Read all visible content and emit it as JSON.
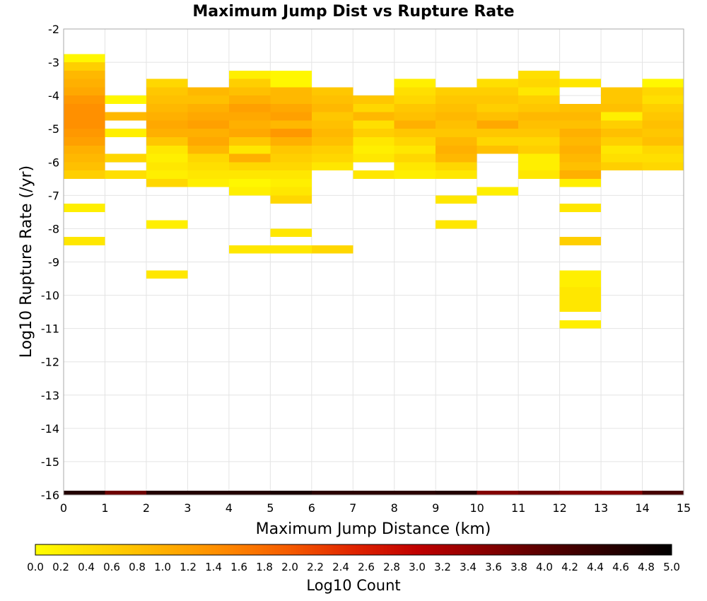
{
  "chart_data": {
    "type": "heatmap",
    "title": "Maximum Jump Dist vs Rupture Rate",
    "xlabel": "Maximum Jump Distance (km)",
    "ylabel": "Log10 Rupture Rate (/yr)",
    "xlim": [
      0,
      15
    ],
    "ylim": [
      -16,
      -2
    ],
    "x_ticks": [
      "0",
      "1",
      "2",
      "3",
      "4",
      "5",
      "6",
      "7",
      "8",
      "9",
      "10",
      "11",
      "12",
      "13",
      "14",
      "15"
    ],
    "y_ticks": [
      "-2",
      "-3",
      "-4",
      "-5",
      "-6",
      "-7",
      "-8",
      "-9",
      "-10",
      "-11",
      "-12",
      "-13",
      "-14",
      "-15",
      "-16"
    ],
    "x_bin_width": 1,
    "y_bin_width": 0.25,
    "grid": true,
    "colorbar": {
      "label": "Log10 Count",
      "range": [
        0,
        5
      ],
      "ticks": [
        "0.0",
        "0.2",
        "0.4",
        "0.6",
        "0.8",
        "1.0",
        "1.2",
        "1.4",
        "1.6",
        "1.8",
        "2.0",
        "2.2",
        "2.4",
        "2.6",
        "2.8",
        "3.0",
        "3.2",
        "3.4",
        "3.6",
        "3.8",
        "4.0",
        "4.2",
        "4.4",
        "4.6",
        "4.8",
        "5.0"
      ],
      "colors": [
        "#ffff00",
        "#ffd700",
        "#ffb000",
        "#ff8800",
        "#f55a00",
        "#e02400",
        "#c00000",
        "#8c0000",
        "#580000",
        "#2a0000",
        "#000000"
      ],
      "placement": "bottom"
    },
    "columns": [
      {
        "x": 0.5,
        "cells": [
          [
            -2.875,
            0.1
          ],
          [
            -3.125,
            0.6
          ],
          [
            -3.375,
            0.9
          ],
          [
            -3.625,
            1.0
          ],
          [
            -3.875,
            1.1
          ],
          [
            -4.125,
            1.3
          ],
          [
            -4.375,
            1.4
          ],
          [
            -4.625,
            1.4
          ],
          [
            -4.875,
            1.4
          ],
          [
            -5.125,
            1.3
          ],
          [
            -5.375,
            1.2
          ],
          [
            -5.625,
            1.0
          ],
          [
            -5.875,
            0.9
          ],
          [
            -6.125,
            0.8
          ],
          [
            -6.375,
            0.6
          ],
          [
            -7.375,
            0.2
          ],
          [
            -8.375,
            0.3
          ],
          [
            -16.0,
            4.6
          ]
        ]
      },
      {
        "x": 1.5,
        "cells": [
          [
            -4.125,
            0.1
          ],
          [
            -4.625,
            0.9
          ],
          [
            -5.125,
            0.2
          ],
          [
            -5.875,
            0.5
          ],
          [
            -6.375,
            0.4
          ],
          [
            -16.0,
            3.8
          ]
        ]
      },
      {
        "x": 2.5,
        "cells": [
          [
            -3.625,
            0.5
          ],
          [
            -3.875,
            0.7
          ],
          [
            -4.125,
            0.8
          ],
          [
            -4.375,
            0.9
          ],
          [
            -4.625,
            1.0
          ],
          [
            -4.875,
            1.1
          ],
          [
            -5.125,
            1.0
          ],
          [
            -5.375,
            0.7
          ],
          [
            -5.625,
            0.3
          ],
          [
            -5.875,
            0.2
          ],
          [
            -6.125,
            0.3
          ],
          [
            -6.375,
            0.2
          ],
          [
            -6.625,
            0.5
          ],
          [
            -7.875,
            0.2
          ],
          [
            -9.375,
            0.3
          ],
          [
            -16.0,
            4.6
          ]
        ]
      },
      {
        "x": 3.5,
        "cells": [
          [
            -3.875,
            0.9
          ],
          [
            -4.125,
            0.8
          ],
          [
            -4.375,
            1.0
          ],
          [
            -4.625,
            1.1
          ],
          [
            -4.875,
            1.2
          ],
          [
            -5.125,
            1.0
          ],
          [
            -5.375,
            1.1
          ],
          [
            -5.625,
            0.9
          ],
          [
            -5.875,
            0.5
          ],
          [
            -6.125,
            0.4
          ],
          [
            -6.375,
            0.3
          ],
          [
            -6.625,
            0.2
          ],
          [
            -16.0,
            4.6
          ]
        ]
      },
      {
        "x": 4.5,
        "cells": [
          [
            -3.375,
            0.2
          ],
          [
            -3.625,
            0.6
          ],
          [
            -3.875,
            0.8
          ],
          [
            -4.125,
            1.0
          ],
          [
            -4.375,
            1.2
          ],
          [
            -4.625,
            1.1
          ],
          [
            -4.875,
            1.0
          ],
          [
            -5.125,
            1.1
          ],
          [
            -5.375,
            0.7
          ],
          [
            -5.625,
            0.3
          ],
          [
            -5.875,
            1.0
          ],
          [
            -6.125,
            0.5
          ],
          [
            -6.375,
            0.3
          ],
          [
            -6.625,
            0.1
          ],
          [
            -6.875,
            0.2
          ],
          [
            -8.625,
            0.3
          ],
          [
            -16.0,
            4.6
          ]
        ]
      },
      {
        "x": 5.5,
        "cells": [
          [
            -3.375,
            0.1
          ],
          [
            -3.625,
            0.1
          ],
          [
            -3.875,
            0.9
          ],
          [
            -4.125,
            0.9
          ],
          [
            -4.375,
            1.1
          ],
          [
            -4.625,
            1.2
          ],
          [
            -4.875,
            0.9
          ],
          [
            -5.125,
            1.3
          ],
          [
            -5.375,
            1.0
          ],
          [
            -5.625,
            0.7
          ],
          [
            -5.875,
            0.6
          ],
          [
            -6.125,
            0.5
          ],
          [
            -6.375,
            0.3
          ],
          [
            -6.625,
            0.2
          ],
          [
            -6.875,
            0.3
          ],
          [
            -7.125,
            0.5
          ],
          [
            -8.125,
            0.3
          ],
          [
            -8.625,
            0.3
          ],
          [
            -16.0,
            4.7
          ]
        ]
      },
      {
        "x": 6.5,
        "cells": [
          [
            -3.875,
            0.7
          ],
          [
            -4.125,
            0.8
          ],
          [
            -4.375,
            0.9
          ],
          [
            -4.625,
            0.7
          ],
          [
            -4.875,
            0.8
          ],
          [
            -5.125,
            0.9
          ],
          [
            -5.375,
            0.8
          ],
          [
            -5.625,
            0.6
          ],
          [
            -5.875,
            0.5
          ],
          [
            -6.125,
            0.3
          ],
          [
            -8.625,
            0.5
          ],
          [
            -16.0,
            4.5
          ]
        ]
      },
      {
        "x": 7.5,
        "cells": [
          [
            -4.125,
            0.7
          ],
          [
            -4.375,
            0.5
          ],
          [
            -4.625,
            0.9
          ],
          [
            -4.875,
            0.4
          ],
          [
            -5.125,
            0.6
          ],
          [
            -5.375,
            0.3
          ],
          [
            -5.625,
            0.2
          ],
          [
            -5.875,
            0.3
          ],
          [
            -6.375,
            0.3
          ],
          [
            -16.0,
            4.5
          ]
        ]
      },
      {
        "x": 8.5,
        "cells": [
          [
            -3.625,
            0.2
          ],
          [
            -3.875,
            0.4
          ],
          [
            -4.125,
            0.5
          ],
          [
            -4.375,
            0.7
          ],
          [
            -4.625,
            0.8
          ],
          [
            -4.875,
            1.0
          ],
          [
            -5.125,
            0.7
          ],
          [
            -5.375,
            0.5
          ],
          [
            -5.625,
            0.3
          ],
          [
            -5.875,
            0.5
          ],
          [
            -6.125,
            0.3
          ],
          [
            -6.375,
            0.2
          ],
          [
            -16.0,
            4.5
          ]
        ]
      },
      {
        "x": 9.5,
        "cells": [
          [
            -3.875,
            0.6
          ],
          [
            -4.125,
            0.7
          ],
          [
            -4.375,
            0.8
          ],
          [
            -4.625,
            0.9
          ],
          [
            -4.875,
            0.8
          ],
          [
            -5.125,
            0.7
          ],
          [
            -5.375,
            0.9
          ],
          [
            -5.625,
            1.0
          ],
          [
            -5.875,
            0.9
          ],
          [
            -6.125,
            0.5
          ],
          [
            -6.375,
            0.3
          ],
          [
            -7.125,
            0.3
          ],
          [
            -7.875,
            0.3
          ],
          [
            -16.0,
            4.6
          ]
        ]
      },
      {
        "x": 10.5,
        "cells": [
          [
            -3.625,
            0.4
          ],
          [
            -3.875,
            0.6
          ],
          [
            -4.125,
            0.7
          ],
          [
            -4.375,
            0.6
          ],
          [
            -4.625,
            0.8
          ],
          [
            -4.875,
            1.1
          ],
          [
            -5.125,
            0.7
          ],
          [
            -5.375,
            0.5
          ],
          [
            -5.625,
            0.8
          ],
          [
            -6.875,
            0.2
          ],
          [
            -16.0,
            3.6
          ]
        ]
      },
      {
        "x": 11.5,
        "cells": [
          [
            -3.375,
            0.4
          ],
          [
            -3.625,
            0.5
          ],
          [
            -3.875,
            0.3
          ],
          [
            -4.125,
            0.6
          ],
          [
            -4.375,
            0.7
          ],
          [
            -4.625,
            0.9
          ],
          [
            -4.875,
            0.8
          ],
          [
            -5.125,
            0.7
          ],
          [
            -5.375,
            0.5
          ],
          [
            -5.625,
            0.6
          ],
          [
            -5.875,
            0.2
          ],
          [
            -6.125,
            0.2
          ],
          [
            -6.375,
            0.3
          ],
          [
            -16.0,
            3.8
          ]
        ]
      },
      {
        "x": 12.5,
        "cells": [
          [
            -3.625,
            0.3
          ],
          [
            -4.375,
            0.8
          ],
          [
            -4.625,
            0.9
          ],
          [
            -4.875,
            0.8
          ],
          [
            -5.125,
            1.0
          ],
          [
            -5.375,
            0.9
          ],
          [
            -5.625,
            1.0
          ],
          [
            -5.875,
            0.9
          ],
          [
            -6.125,
            0.8
          ],
          [
            -6.375,
            1.0
          ],
          [
            -6.625,
            0.2
          ],
          [
            -7.375,
            0.3
          ],
          [
            -8.375,
            0.6
          ],
          [
            -9.375,
            0.2
          ],
          [
            -9.625,
            0.2
          ],
          [
            -9.875,
            0.3
          ],
          [
            -10.125,
            0.3
          ],
          [
            -10.375,
            0.3
          ],
          [
            -10.875,
            0.2
          ],
          [
            -16.0,
            3.6
          ]
        ]
      },
      {
        "x": 13.5,
        "cells": [
          [
            -3.875,
            0.7
          ],
          [
            -4.125,
            0.7
          ],
          [
            -4.375,
            0.8
          ],
          [
            -4.625,
            0.2
          ],
          [
            -4.875,
            0.6
          ],
          [
            -5.125,
            0.8
          ],
          [
            -5.375,
            0.6
          ],
          [
            -5.625,
            0.3
          ],
          [
            -5.875,
            0.4
          ],
          [
            -6.125,
            0.6
          ],
          [
            -16.0,
            3.6
          ]
        ]
      },
      {
        "x": 14.5,
        "cells": [
          [
            -3.625,
            0.1
          ],
          [
            -3.875,
            0.5
          ],
          [
            -4.125,
            0.4
          ],
          [
            -4.375,
            0.6
          ],
          [
            -4.625,
            0.7
          ],
          [
            -4.875,
            0.8
          ],
          [
            -5.125,
            0.7
          ],
          [
            -5.375,
            0.8
          ],
          [
            -5.625,
            0.5
          ],
          [
            -5.875,
            0.4
          ],
          [
            -6.125,
            0.5
          ],
          [
            -16.0,
            4.2
          ]
        ]
      }
    ]
  }
}
